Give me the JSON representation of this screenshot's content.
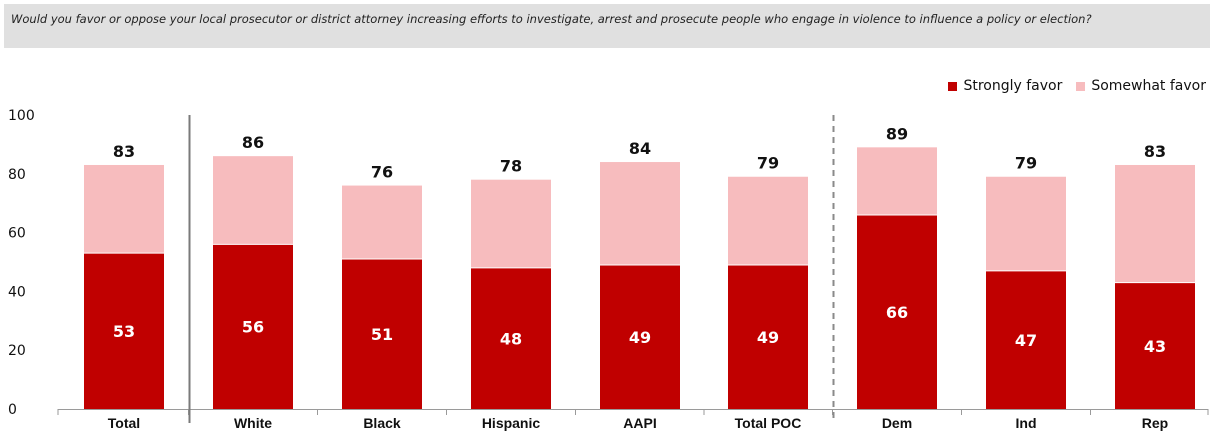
{
  "question": "Would you favor or oppose your local prosecutor or district attorney increasing efforts to investigate, arrest and prosecute people who engage in violence to influence a policy or election?",
  "legend": {
    "strongly": "Strongly favor",
    "somewhat": "Somewhat favor"
  },
  "colors": {
    "strongly": "#c00000",
    "somewhat": "#f7bcbe"
  },
  "chart_data": {
    "type": "bar",
    "stacked": true,
    "title": "",
    "xlabel": "",
    "ylabel": "",
    "ylim": [
      0,
      100
    ],
    "yticks": [
      0,
      20,
      40,
      60,
      80,
      100
    ],
    "grid": false,
    "legend_position": "top-right",
    "categories": [
      "Total",
      "White",
      "Black",
      "Hispanic",
      "AAPI",
      "Total POC",
      "Dem",
      "Ind",
      "Rep"
    ],
    "series": [
      {
        "name": "Strongly favor",
        "values": [
          53,
          56,
          51,
          48,
          49,
          49,
          66,
          47,
          43
        ]
      },
      {
        "name": "Somewhat favor",
        "values": [
          30,
          30,
          25,
          30,
          35,
          30,
          23,
          32,
          40
        ]
      }
    ],
    "totals": [
      83,
      86,
      76,
      78,
      84,
      79,
      89,
      79,
      83
    ],
    "separators": [
      {
        "after_category": "Total",
        "style": "solid"
      },
      {
        "after_category": "Total POC",
        "style": "dashed"
      }
    ]
  }
}
